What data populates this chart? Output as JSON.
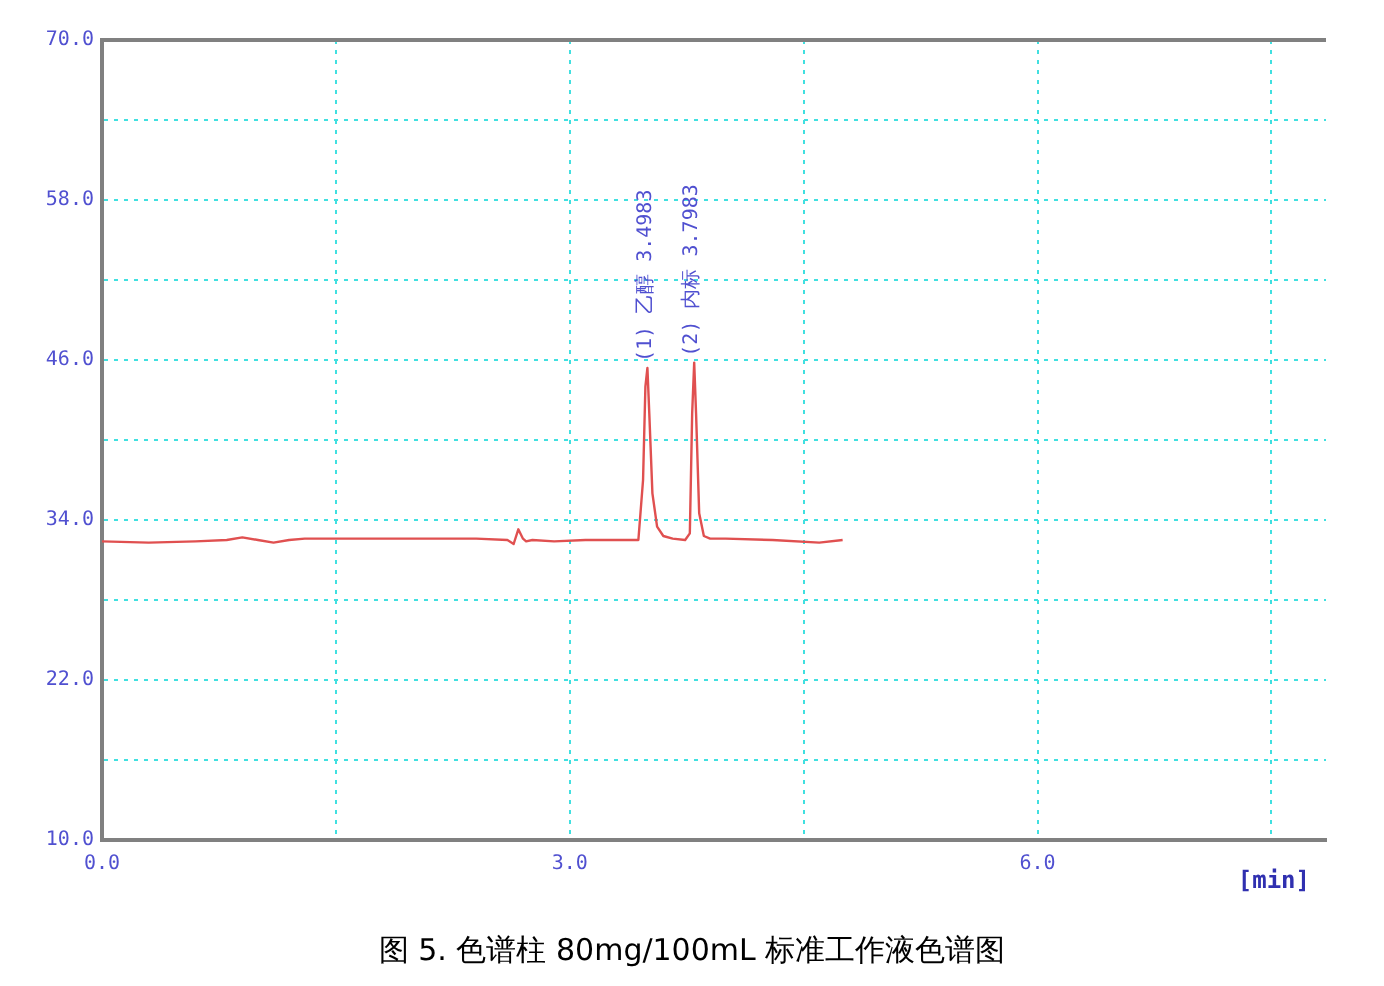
{
  "chart_data": {
    "type": "line",
    "title": "图 5. 色谱柱 80mg/100mL 标准工作液色谱图",
    "xlabel": "[min]",
    "x": [
      0,
      0.3,
      0.6,
      0.8,
      0.9,
      1.0,
      1.1,
      1.2,
      1.3,
      1.6,
      2.0,
      2.4,
      2.6,
      2.64,
      2.67,
      2.7,
      2.72,
      2.76,
      2.9,
      3.1,
      3.3,
      3.44,
      3.47,
      3.485,
      3.498,
      3.51,
      3.53,
      3.56,
      3.6,
      3.66,
      3.74,
      3.77,
      3.785,
      3.798,
      3.81,
      3.83,
      3.86,
      3.9,
      4.0,
      4.3,
      4.6,
      4.75
    ],
    "series": [
      {
        "color": "#e05050",
        "values": [
          32.4,
          32.3,
          32.4,
          32.5,
          32.7,
          32.5,
          32.3,
          32.5,
          32.6,
          32.6,
          32.6,
          32.6,
          32.5,
          32.2,
          33.3,
          32.6,
          32.4,
          32.5,
          32.4,
          32.5,
          32.5,
          32.5,
          37,
          44,
          45.4,
          42,
          36,
          33.5,
          32.8,
          32.6,
          32.5,
          33,
          42,
          45.8,
          42,
          34.5,
          32.8,
          32.6,
          32.6,
          32.5,
          32.3,
          32.5
        ]
      }
    ],
    "xlim": [
      0,
      7.85
    ],
    "xticks": [
      {
        "value": 0,
        "label": "0.0"
      },
      {
        "value": 1.5,
        "label": null
      },
      {
        "value": 3,
        "label": "3.0"
      },
      {
        "value": 4.5,
        "label": null
      },
      {
        "value": 6,
        "label": "6.0"
      },
      {
        "value": 7.5,
        "label": null
      }
    ],
    "ylim": [
      10,
      70
    ],
    "yticks": [
      {
        "value": 10,
        "label": "10.0"
      },
      {
        "value": 16,
        "label": null
      },
      {
        "value": 22,
        "label": "22.0"
      },
      {
        "value": 28,
        "label": null
      },
      {
        "value": 34,
        "label": "34.0"
      },
      {
        "value": 40,
        "label": null
      },
      {
        "value": 46,
        "label": "46.0"
      },
      {
        "value": 52,
        "label": null
      },
      {
        "value": 58,
        "label": "58.0"
      },
      {
        "value": 64,
        "label": null
      },
      {
        "value": 70,
        "label": "70.0"
      }
    ],
    "grid": true,
    "legend": false,
    "marker": "none",
    "line_style": "solid",
    "annotations": [
      {
        "text": "(1) 乙醇 3.4983",
        "x": 3.4983,
        "y": 45.4
      },
      {
        "text": "(2) 内标 3.7983",
        "x": 3.7983,
        "y": 45.8
      }
    ]
  }
}
